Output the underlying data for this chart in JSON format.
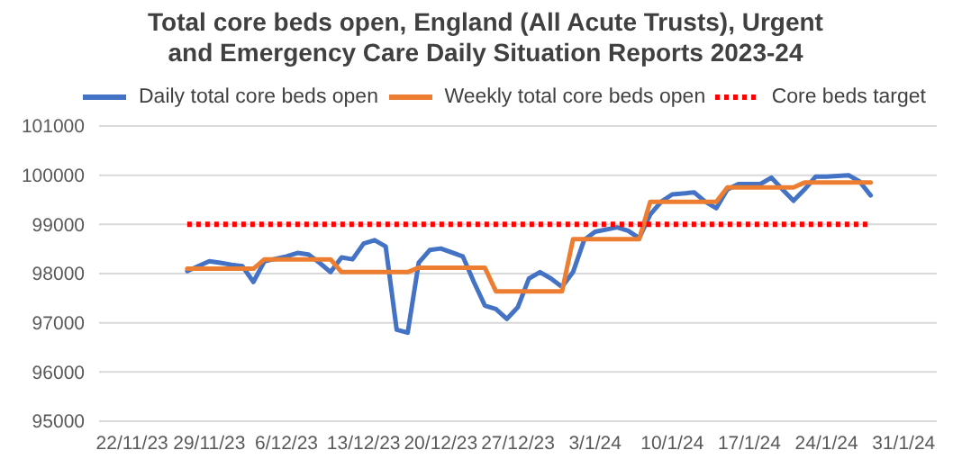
{
  "chart_data": {
    "type": "line",
    "title": "Total core beds open, England (All Acute Trusts), Urgent and Emergency Care Daily Situation Reports 2023-24",
    "xlim": [
      "2023-11-19",
      "2024-02-03"
    ],
    "xticks": [
      {
        "value": "2023-11-22",
        "label": "22/11/23"
      },
      {
        "value": "2023-11-29",
        "label": "29/11/23"
      },
      {
        "value": "2023-12-06",
        "label": "6/12/23"
      },
      {
        "value": "2023-12-13",
        "label": "13/12/23"
      },
      {
        "value": "2023-12-20",
        "label": "20/12/23"
      },
      {
        "value": "2023-12-27",
        "label": "27/12/23"
      },
      {
        "value": "2024-01-03",
        "label": "3/1/24"
      },
      {
        "value": "2024-01-10",
        "label": "10/1/24"
      },
      {
        "value": "2024-01-17",
        "label": "17/1/24"
      },
      {
        "value": "2024-01-24",
        "label": "24/1/24"
      },
      {
        "value": "2024-01-31",
        "label": "31/1/24"
      }
    ],
    "ylim": [
      95000,
      101000
    ],
    "yticks": [
      95000,
      96000,
      97000,
      98000,
      99000,
      100000,
      101000
    ],
    "grid": "y",
    "legend": "top",
    "marker": "none",
    "series": [
      {
        "name": "Daily total core beds open",
        "color": "#4472c4",
        "line_style": "solid",
        "x": [
          "2023-11-27",
          "2023-11-29",
          "2023-11-30",
          "2023-12-01",
          "2023-12-02",
          "2023-12-03",
          "2023-12-04",
          "2023-12-06",
          "2023-12-07",
          "2023-12-08",
          "2023-12-09",
          "2023-12-10",
          "2023-12-11",
          "2023-12-12",
          "2023-12-13",
          "2023-12-14",
          "2023-12-15",
          "2023-12-16",
          "2023-12-17",
          "2023-12-18",
          "2023-12-19",
          "2023-12-20",
          "2023-12-22",
          "2023-12-23",
          "2023-12-24",
          "2023-12-25",
          "2023-12-26",
          "2023-12-27",
          "2023-12-28",
          "2023-12-29",
          "2023-12-30",
          "2023-12-31",
          "2024-01-01",
          "2024-01-02",
          "2024-01-03",
          "2024-01-05",
          "2024-01-06",
          "2024-01-07",
          "2024-01-08",
          "2024-01-09",
          "2024-01-10",
          "2024-01-12",
          "2024-01-13",
          "2024-01-14",
          "2024-01-15",
          "2024-01-16",
          "2024-01-18",
          "2024-01-19",
          "2024-01-20",
          "2024-01-21",
          "2024-01-22",
          "2024-01-23",
          "2024-01-24",
          "2024-01-26",
          "2024-01-27",
          "2024-01-28"
        ],
        "values": [
          98050,
          98250,
          98220,
          98180,
          98150,
          97830,
          98250,
          98350,
          98420,
          98390,
          98220,
          98030,
          98330,
          98290,
          98610,
          98680,
          98550,
          96860,
          96800,
          98220,
          98480,
          98510,
          98350,
          97830,
          97350,
          97280,
          97080,
          97320,
          97900,
          98030,
          97900,
          97730,
          98030,
          98680,
          98850,
          98940,
          98870,
          98720,
          99200,
          99460,
          99610,
          99650,
          99460,
          99330,
          99710,
          99820,
          99820,
          99950,
          99710,
          99480,
          99710,
          99970,
          99970,
          100000,
          99870,
          99590
        ]
      },
      {
        "name": "Weekly total core beds open",
        "color": "#ed7d31",
        "line_style": "solid",
        "x": [
          "2023-11-27",
          "2023-12-03",
          "2023-12-04",
          "2023-12-10",
          "2023-12-11",
          "2023-12-17",
          "2023-12-18",
          "2023-12-24",
          "2023-12-25",
          "2023-12-31",
          "2024-01-01",
          "2024-01-07",
          "2024-01-08",
          "2024-01-14",
          "2024-01-15",
          "2024-01-21",
          "2024-01-22",
          "2024-01-28"
        ],
        "values": [
          98100,
          98100,
          98290,
          98290,
          98030,
          98030,
          98120,
          98120,
          97640,
          97640,
          98700,
          98700,
          99460,
          99460,
          99750,
          99750,
          99850,
          99850
        ]
      },
      {
        "name": "Core beds target",
        "color": "#ff0000",
        "line_style": "dotted",
        "x": [
          "2023-11-27",
          "2024-01-28"
        ],
        "values": [
          99000,
          99000
        ]
      }
    ]
  }
}
